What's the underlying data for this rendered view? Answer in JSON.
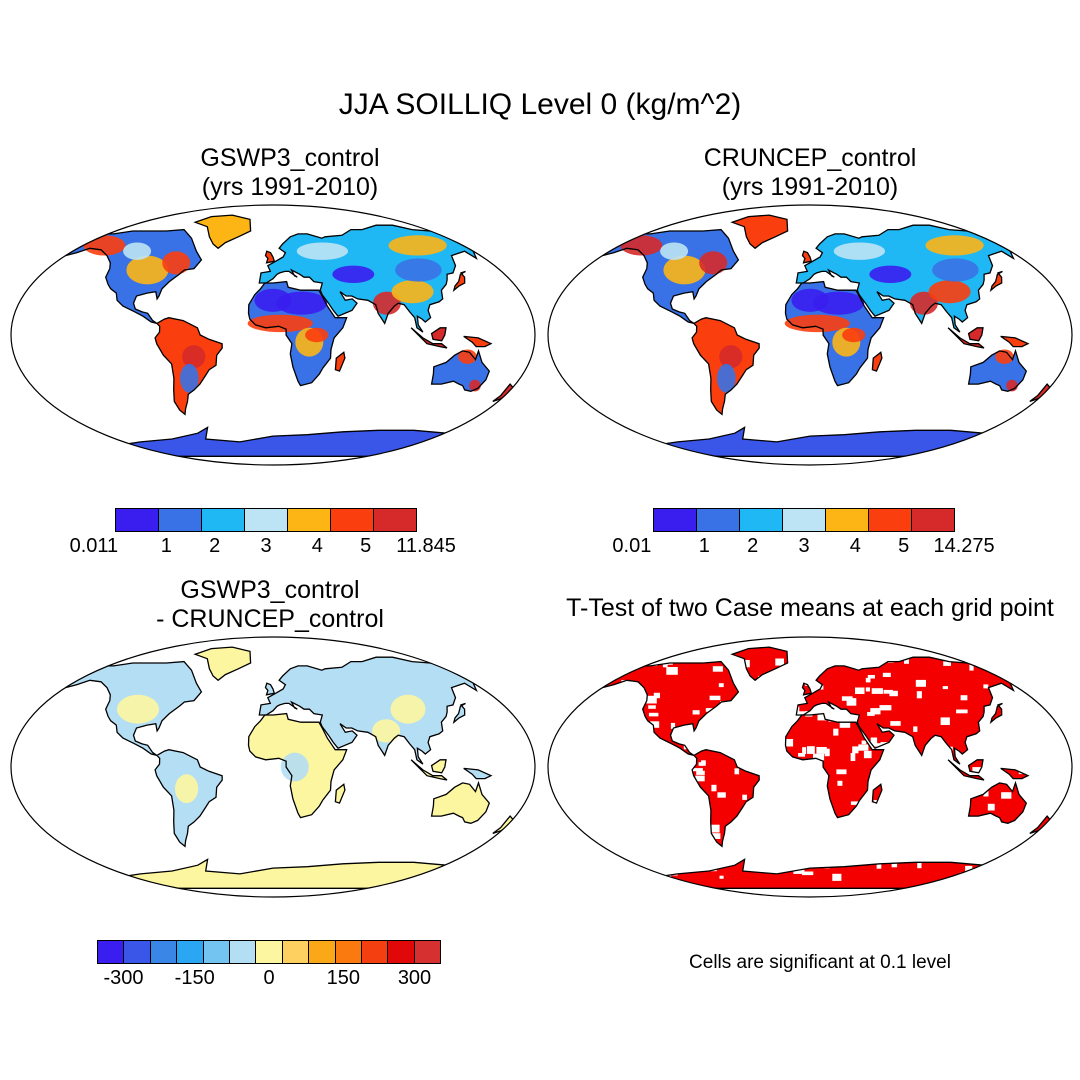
{
  "title": "JJA SOILLIQ Level 0 (kg/m^2)",
  "panels": [
    {
      "title_line1": "GSWP3_control",
      "title_line2": "(yrs 1991-2010)",
      "colorbar": {
        "colors": [
          "#3a1ef0",
          "#3872e6",
          "#1fb8f5",
          "#bde4f4",
          "#fdb515",
          "#fb3e0e",
          "#d62a2a"
        ],
        "labels": [
          "0.011",
          "1",
          "2",
          "3",
          "4",
          "5",
          "11.845"
        ]
      }
    },
    {
      "title_line1": "CRUNCEP_control",
      "title_line2": "(yrs 1991-2010)",
      "colorbar": {
        "colors": [
          "#3a1ef0",
          "#3872e6",
          "#1fb8f5",
          "#bde4f4",
          "#fdb515",
          "#fb3e0e",
          "#d62a2a"
        ],
        "labels": [
          "0.01",
          "1",
          "2",
          "3",
          "4",
          "5",
          "14.275"
        ]
      }
    },
    {
      "title_line1": "GSWP3_control",
      "title_line2": "- CRUNCEP_control",
      "colorbar": {
        "colors": [
          "#3a1ef0",
          "#3a56e8",
          "#3a86e6",
          "#2aa6f2",
          "#74c4f2",
          "#b4def4",
          "#fdf6a0",
          "#fdd060",
          "#fba818",
          "#fa7a10",
          "#f44010",
          "#e00808",
          "#d63030"
        ],
        "labels": [
          "-300",
          "-150",
          "0",
          "150",
          "300"
        ]
      }
    },
    {
      "title_line1": "T-Test of two Case means at each grid point",
      "note": "Cells are significant at 0.1 level"
    }
  ]
}
